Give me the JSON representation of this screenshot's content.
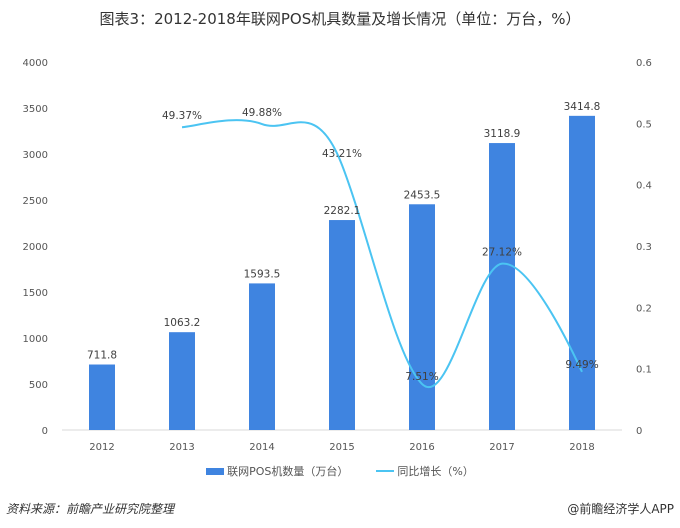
{
  "chart_data": {
    "type": "bar+line",
    "title": "图表3：2012-2018年联网POS机具数量及增长情况（单位：万台，%）",
    "categories": [
      "2012",
      "2013",
      "2014",
      "2015",
      "2016",
      "2017",
      "2018"
    ],
    "series": [
      {
        "name": "联网POS机数量（万台）",
        "type": "bar",
        "axis": "left",
        "values": [
          711.8,
          1063.2,
          1593.5,
          2282.1,
          2453.5,
          3118.9,
          3414.8
        ],
        "labels": [
          "711.8",
          "1063.2",
          "1593.5",
          "2282.1",
          "2453.5",
          "3118.9",
          "3414.8"
        ]
      },
      {
        "name": "同比增长（%）",
        "type": "line",
        "axis": "right",
        "smooth": true,
        "values": [
          null,
          0.4937,
          0.4988,
          0.4321,
          0.0751,
          0.2712,
          0.0949
        ],
        "labels": [
          "",
          "49.37%",
          "49.88%",
          "43.21%",
          "7.51%",
          "27.12%",
          "9.49%"
        ]
      }
    ],
    "y_left": {
      "range": [
        0,
        4000
      ],
      "ticks": [
        "0",
        "500",
        "1000",
        "1500",
        "2000",
        "2500",
        "3000",
        "3500",
        "4000"
      ]
    },
    "y_right": {
      "range": [
        0,
        0.6
      ],
      "ticks": [
        "0",
        "0.1",
        "0.2",
        "0.3",
        "0.4",
        "0.5",
        "0.6"
      ]
    },
    "grid": false,
    "legend": "bottom",
    "colors": {
      "bar": "#3F84E0",
      "line": "#4BC4F2"
    }
  },
  "footer": {
    "source": "资料来源：前瞻产业研究院整理",
    "credit": "@前瞻经济学人APP"
  }
}
